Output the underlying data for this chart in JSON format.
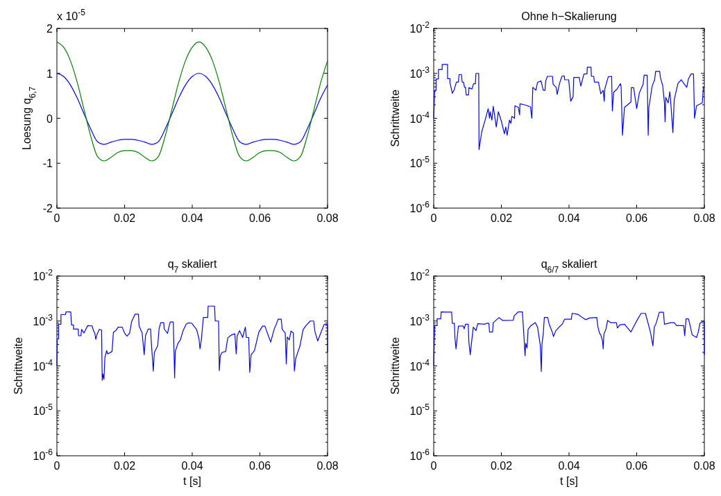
{
  "chart_data": [
    {
      "type": "line",
      "ylabel": "Loesung q$_{6,7}$",
      "annotations": [
        "x 10$^{-5}$"
      ],
      "xlim": [
        0,
        0.08
      ],
      "xticks": [
        0,
        0.02,
        0.04,
        0.06,
        0.08
      ],
      "ylim": [
        -2,
        2
      ],
      "yticks": [
        -2,
        -1,
        0,
        1,
        2
      ],
      "series": [
        {
          "color": "#0000ff",
          "x": [
            0,
            0.002,
            0.004,
            0.006,
            0.008,
            0.01,
            0.012,
            0.014,
            0.016,
            0.018,
            0.02,
            0.022,
            0.024,
            0.026,
            0.028,
            0.03,
            0.032,
            0.034,
            0.036,
            0.038,
            0.04,
            0.042,
            0.044,
            0.046,
            0.048,
            0.05,
            0.052,
            0.054,
            0.056,
            0.058,
            0.06,
            0.062,
            0.064,
            0.066,
            0.068,
            0.07,
            0.072,
            0.074,
            0.076,
            0.078,
            0.08
          ],
          "values": [
            1.0,
            0.93,
            0.74,
            0.45,
            0.1,
            -0.24,
            -0.52,
            -0.58,
            -0.53,
            -0.49,
            -0.47,
            -0.47,
            -0.49,
            -0.53,
            -0.58,
            -0.52,
            -0.24,
            0.1,
            0.45,
            0.74,
            0.93,
            1.0,
            0.93,
            0.74,
            0.45,
            0.1,
            -0.24,
            -0.52,
            -0.58,
            -0.53,
            -0.49,
            -0.47,
            -0.47,
            -0.49,
            -0.53,
            -0.58,
            -0.52,
            -0.24,
            0.1,
            0.45,
            0.74
          ]
        },
        {
          "color": "#008000",
          "x": [
            0,
            0.002,
            0.004,
            0.006,
            0.008,
            0.01,
            0.012,
            0.014,
            0.016,
            0.018,
            0.02,
            0.022,
            0.024,
            0.026,
            0.028,
            0.03,
            0.032,
            0.034,
            0.036,
            0.038,
            0.04,
            0.042,
            0.044,
            0.046,
            0.048,
            0.05,
            0.052,
            0.054,
            0.056,
            0.058,
            0.06,
            0.062,
            0.064,
            0.066,
            0.068,
            0.07,
            0.072,
            0.074,
            0.076,
            0.078,
            0.08
          ],
          "values": [
            1.7,
            1.58,
            1.28,
            0.8,
            0.2,
            -0.4,
            -0.85,
            -0.95,
            -0.87,
            -0.76,
            -0.72,
            -0.72,
            -0.76,
            -0.87,
            -0.95,
            -0.85,
            -0.4,
            0.2,
            0.8,
            1.28,
            1.58,
            1.7,
            1.58,
            1.28,
            0.8,
            0.2,
            -0.4,
            -0.85,
            -0.95,
            -0.87,
            -0.76,
            -0.72,
            -0.72,
            -0.76,
            -0.87,
            -0.95,
            -0.85,
            -0.4,
            0.2,
            0.8,
            1.28
          ]
        }
      ]
    },
    {
      "type": "line",
      "title": "Ohne h−Skalierung",
      "ylabel": "Schrittweite",
      "log": "y",
      "xlim": [
        0,
        0.08
      ],
      "xticks": [
        0,
        0.02,
        0.04,
        0.06,
        0.08
      ],
      "ylim": [
        1e-06,
        0.01
      ],
      "yticks": [
        {
          "value": 1e-06,
          "label": "10$^{-6}$"
        },
        {
          "value": 2e-06,
          "label": null
        },
        {
          "value": 3e-06,
          "label": null
        },
        {
          "value": 4e-06,
          "label": null
        },
        {
          "value": 5e-06,
          "label": null
        },
        {
          "value": 6e-06,
          "label": null
        },
        {
          "value": 7e-06,
          "label": null
        },
        {
          "value": 8e-06,
          "label": null
        },
        {
          "value": 9e-06,
          "label": null
        },
        {
          "value": 1e-05,
          "label": "10$^{-5}$"
        },
        {
          "value": 2e-05,
          "label": null
        },
        {
          "value": 3e-05,
          "label": null
        },
        {
          "value": 4e-05,
          "label": null
        },
        {
          "value": 5e-05,
          "label": null
        },
        {
          "value": 6e-05,
          "label": null
        },
        {
          "value": 7e-05,
          "label": null
        },
        {
          "value": 8e-05,
          "label": null
        },
        {
          "value": 9e-05,
          "label": null
        },
        {
          "value": 0.0001,
          "label": "10$^{-4}$"
        },
        {
          "value": 0.0002,
          "label": null
        },
        {
          "value": 0.0003,
          "label": null
        },
        {
          "value": 0.0004,
          "label": null
        },
        {
          "value": 0.0005,
          "label": null
        },
        {
          "value": 0.0006,
          "label": null
        },
        {
          "value": 0.0007,
          "label": null
        },
        {
          "value": 0.0008,
          "label": null
        },
        {
          "value": 0.0009,
          "label": null
        },
        {
          "value": 0.001,
          "label": "10$^{-3}$"
        },
        {
          "value": 0.002,
          "label": null
        },
        {
          "value": 0.003,
          "label": null
        },
        {
          "value": 0.004,
          "label": null
        },
        {
          "value": 0.005,
          "label": null
        },
        {
          "value": 0.006,
          "label": null
        },
        {
          "value": 0.007,
          "label": null
        },
        {
          "value": 0.008,
          "label": null
        },
        {
          "value": 0.009,
          "label": null
        },
        {
          "value": 0.01,
          "label": "10$^{-2}$"
        }
      ],
      "series": [
        {
          "color": "#0000ff",
          "x": [
            0,
            0.0003,
            0.0007,
            0.0007,
            0.0014,
            0.0014,
            0.0025,
            0.0025,
            0.0041,
            0.0041,
            0.0048,
            0.0048,
            0.0055,
            0.006,
            0.0067,
            0.0073,
            0.0075,
            0.0082,
            0.0084,
            0.0088,
            0.0091,
            0.0094,
            0.0096,
            0.0103,
            0.0104,
            0.0113,
            0.0118,
            0.0123,
            0.0125,
            0.0133,
            0.0134,
            0.0142,
            0.0152,
            0.0161,
            0.0165,
            0.0167,
            0.0172,
            0.0176,
            0.0183,
            0.0185,
            0.0191,
            0.02,
            0.0209,
            0.0213,
            0.0217,
            0.0224,
            0.0228,
            0.0231,
            0.0239,
            0.024,
            0.025,
            0.0254,
            0.0255,
            0.0268,
            0.0286,
            0.029,
            0.0293,
            0.0302,
            0.0307,
            0.0317,
            0.0324,
            0.0329,
            0.0331,
            0.0336,
            0.0351,
            0.0353,
            0.0362,
            0.0365,
            0.0372,
            0.0379,
            0.0386,
            0.0387,
            0.0399,
            0.0405,
            0.0412,
            0.0414,
            0.043,
            0.0435,
            0.0444,
            0.0453,
            0.0454,
            0.0465,
            0.0466,
            0.0473,
            0.0475,
            0.0487,
            0.0494,
            0.0501,
            0.0504,
            0.0506,
            0.0516,
            0.0526,
            0.0528,
            0.0532,
            0.0542,
            0.0552,
            0.0554,
            0.0558,
            0.0564,
            0.0583,
            0.0584,
            0.0591,
            0.06,
            0.0608,
            0.0619,
            0.0622,
            0.0631,
            0.0634,
            0.0636,
            0.0646,
            0.0653,
            0.0656,
            0.0668,
            0.067,
            0.0677,
            0.0682,
            0.0684,
            0.0686,
            0.0693,
            0.0698,
            0.0701,
            0.0707,
            0.0711,
            0.0722,
            0.0732,
            0.0739,
            0.0748,
            0.0753,
            0.0761,
            0.0768,
            0.0771,
            0.0777,
            0.0794,
            0.0797,
            0.08
          ],
          "values": [
            0.0001,
            0.00042,
            0.00042,
            0.00075,
            0.00075,
            0.00122,
            0.00122,
            0.00158,
            0.00158,
            0.00076,
            0.00076,
            0.00062,
            0.00036,
            0.00042,
            0.00064,
            0.00064,
            0.00094,
            0.00094,
            0.00064,
            0.00064,
            0.00049,
            0.00049,
            0.00033,
            0.00033,
            0.00048,
            0.00045,
            0.00059,
            0.00059,
            0.001,
            0.001,
            2e-05,
            5e-05,
            9.1e-05,
            0.000164,
            0.0001,
            0.00014,
            9.1e-05,
            0.000185,
            8.1e-05,
            6.4e-05,
            0.00014,
            8.6e-05,
            4.5e-05,
            6.4e-05,
            4.2e-05,
            9.1e-05,
            7.7e-05,
            0.00011,
            0.0001,
            0.00019,
            0.000175,
            0.00012,
            0.00021,
            0.0002,
            0.00018,
            0.0001,
            0.00049,
            0.00042,
            0.00063,
            0.00068,
            0.00042,
            0.00042,
            0.00068,
            0.00086,
            0.00086,
            0.00057,
            0.00049,
            0.00034,
            0.0006,
            0.00086,
            0.00088,
            0.00072,
            0.00072,
            0.00024,
            0.0003,
            0.00081,
            0.00081,
            0.00052,
            0.00097,
            0.00097,
            0.00137,
            0.00137,
            0.00086,
            0.00086,
            0.00064,
            0.00064,
            0.00035,
            0.00042,
            0.00024,
            0.00046,
            0.00084,
            0.00086,
            0.000146,
            0.00038,
            0.00045,
            0.00059,
            0.0005,
            4.2e-05,
            0.000175,
            0.00023,
            0.00048,
            0.00048,
            0.000164,
            0.00037,
            0.00057,
            0.00091,
            0.00091,
            4.2e-05,
            0.000175,
            0.00053,
            0.00072,
            0.00111,
            0.00111,
            0.00081,
            0.00053,
            0.00022,
            8.3e-05,
            0.00029,
            0.00022,
            0.00039,
            0.00021,
            4.8e-05,
            0.00026,
            0.0006,
            0.00072,
            0.0006,
            0.00049,
            0.00076,
            0.00097,
            0.00097,
            0.0001,
            0.00019,
            0.00022,
            0.00048,
            0.00048
          ]
        }
      ]
    },
    {
      "type": "line",
      "title": "q$_{7}$ skaliert",
      "xlabel": "t [s]",
      "ylabel": "Schrittweite",
      "log": "y",
      "xlim": [
        0,
        0.08
      ],
      "xticks": [
        0,
        0.02,
        0.04,
        0.06,
        0.08
      ],
      "ylim": [
        1e-06,
        0.01
      ],
      "yticks": [
        {
          "value": 1e-06,
          "label": "10$^{-6}$"
        },
        {
          "value": 2e-06,
          "label": null
        },
        {
          "value": 3e-06,
          "label": null
        },
        {
          "value": 4e-06,
          "label": null
        },
        {
          "value": 5e-06,
          "label": null
        },
        {
          "value": 6e-06,
          "label": null
        },
        {
          "value": 7e-06,
          "label": null
        },
        {
          "value": 8e-06,
          "label": null
        },
        {
          "value": 9e-06,
          "label": null
        },
        {
          "value": 1e-05,
          "label": "10$^{-5}$"
        },
        {
          "value": 2e-05,
          "label": null
        },
        {
          "value": 3e-05,
          "label": null
        },
        {
          "value": 4e-05,
          "label": null
        },
        {
          "value": 5e-05,
          "label": null
        },
        {
          "value": 6e-05,
          "label": null
        },
        {
          "value": 7e-05,
          "label": null
        },
        {
          "value": 8e-05,
          "label": null
        },
        {
          "value": 9e-05,
          "label": null
        },
        {
          "value": 0.0001,
          "label": "10$^{-4}$"
        },
        {
          "value": 0.0002,
          "label": null
        },
        {
          "value": 0.0003,
          "label": null
        },
        {
          "value": 0.0004,
          "label": null
        },
        {
          "value": 0.0005,
          "label": null
        },
        {
          "value": 0.0006,
          "label": null
        },
        {
          "value": 0.0007,
          "label": null
        },
        {
          "value": 0.0008,
          "label": null
        },
        {
          "value": 0.0009,
          "label": null
        },
        {
          "value": 0.001,
          "label": "10$^{-3}$"
        },
        {
          "value": 0.002,
          "label": null
        },
        {
          "value": 0.003,
          "label": null
        },
        {
          "value": 0.004,
          "label": null
        },
        {
          "value": 0.005,
          "label": null
        },
        {
          "value": 0.006,
          "label": null
        },
        {
          "value": 0.007,
          "label": null
        },
        {
          "value": 0.008,
          "label": null
        },
        {
          "value": 0.009,
          "label": null
        },
        {
          "value": 0.01,
          "label": "10$^{-2}$"
        }
      ],
      "series": [
        {
          "color": "#0000ff",
          "x": [
            0,
            0.0001,
            0.0005,
            0.0005,
            0.0012,
            0.0012,
            0.0025,
            0.0027,
            0.0041,
            0.0043,
            0.0049,
            0.0049,
            0.0063,
            0.0064,
            0.0071,
            0.0073,
            0.008,
            0.0091,
            0.0104,
            0.0108,
            0.0112,
            0.0115,
            0.0118,
            0.0125,
            0.0132,
            0.0134,
            0.0136,
            0.0139,
            0.0142,
            0.0147,
            0.015,
            0.0163,
            0.0167,
            0.0174,
            0.0181,
            0.0193,
            0.02,
            0.0207,
            0.0215,
            0.0221,
            0.0231,
            0.0241,
            0.0243,
            0.0252,
            0.0258,
            0.0262,
            0.027,
            0.0277,
            0.0279,
            0.0285,
            0.0288,
            0.0298,
            0.0302,
            0.0307,
            0.0316,
            0.0317,
            0.0327,
            0.0331,
            0.0335,
            0.0344,
            0.0346,
            0.0348,
            0.035,
            0.0358,
            0.0365,
            0.0373,
            0.0382,
            0.0389,
            0.0399,
            0.0405,
            0.0413,
            0.042,
            0.0423,
            0.0427,
            0.0433,
            0.0446,
            0.0447,
            0.0466,
            0.0468,
            0.0478,
            0.048,
            0.0483,
            0.0488,
            0.0499,
            0.0505,
            0.0516,
            0.0526,
            0.053,
            0.0533,
            0.054,
            0.0549,
            0.0557,
            0.056,
            0.0567,
            0.057,
            0.0574,
            0.0584,
            0.0597,
            0.0608,
            0.0615,
            0.0622,
            0.0632,
            0.0642,
            0.0649,
            0.0654,
            0.0663,
            0.0666,
            0.0675,
            0.0678,
            0.0681,
            0.0687,
            0.0692,
            0.0699,
            0.0702,
            0.0706,
            0.0718,
            0.0728,
            0.0738,
            0.0749,
            0.0759,
            0.0763,
            0.0771,
            0.078,
            0.079,
            0.08,
            0.08
          ],
          "values": [
            0.0001,
            0.0004,
            0.0004,
            0.00085,
            0.00085,
            0.00139,
            0.00139,
            0.0016,
            0.0016,
            0.00082,
            0.00082,
            0.00066,
            0.00066,
            0.00047,
            0.00047,
            0.00065,
            0.00054,
            0.00079,
            0.00078,
            0.00061,
            0.00054,
            0.00039,
            0.00049,
            0.00065,
            0.00063,
            4.8e-05,
            6.6e-05,
            5e-05,
            0.000156,
            0.00022,
            0.000185,
            0.00021,
            0.00056,
            0.00061,
            0.00073,
            0.00073,
            0.00054,
            0.00046,
            0.00054,
            0.00098,
            0.00142,
            0.00142,
            0.00077,
            0.00054,
            0.000177,
            0.00048,
            0.00066,
            0.00066,
            0.00034,
            7.7e-05,
            0.0002,
            0.00028,
            0.00067,
            0.00092,
            0.00092,
            0.00067,
            0.00053,
            0.00073,
            0.00095,
            0.00095,
            0.00022,
            5.4e-05,
            0.00021,
            0.00032,
            0.00038,
            0.00061,
            0.00085,
            0.00091,
            0.00089,
            0.00077,
            0.00065,
            0.0004,
            0.00024,
            0.00038,
            0.0012,
            0.0012,
            0.00215,
            0.00215,
            0.001,
            0.001,
            7.9e-05,
            0.000166,
            0.0002,
            0.00021,
            0.00042,
            0.00049,
            0.00052,
            0.000185,
            0.00047,
            0.00061,
            0.00043,
            0.00073,
            0.00043,
            0.00043,
            7.2e-05,
            0.000177,
            0.00022,
            0.00057,
            0.00077,
            0.00077,
            0.00054,
            0.00034,
            0.00065,
            0.00087,
            0.0011,
            0.0011,
            0.00065,
            0.00054,
            0.00011,
            0.00044,
            0.00038,
            0.0006,
            0.00054,
            7.7e-05,
            0.000148,
            0.00027,
            0.00065,
            0.00082,
            0.001,
            0.001,
            0.00057,
            0.00036,
            0.00054,
            0.00084,
            0.00084,
            0.0002
          ]
        }
      ]
    },
    {
      "type": "line",
      "title": "q$_{6/7}$ skaliert",
      "xlabel": "t [s]",
      "ylabel": "Schrittweite",
      "log": "y",
      "xlim": [
        0,
        0.08
      ],
      "xticks": [
        0,
        0.02,
        0.04,
        0.06,
        0.08
      ],
      "ylim": [
        1e-06,
        0.01
      ],
      "yticks": [
        {
          "value": 1e-06,
          "label": "10$^{-6}$"
        },
        {
          "value": 2e-06,
          "label": null
        },
        {
          "value": 3e-06,
          "label": null
        },
        {
          "value": 4e-06,
          "label": null
        },
        {
          "value": 5e-06,
          "label": null
        },
        {
          "value": 6e-06,
          "label": null
        },
        {
          "value": 7e-06,
          "label": null
        },
        {
          "value": 8e-06,
          "label": null
        },
        {
          "value": 9e-06,
          "label": null
        },
        {
          "value": 1e-05,
          "label": "10$^{-5}$"
        },
        {
          "value": 2e-05,
          "label": null
        },
        {
          "value": 3e-05,
          "label": null
        },
        {
          "value": 4e-05,
          "label": null
        },
        {
          "value": 5e-05,
          "label": null
        },
        {
          "value": 6e-05,
          "label": null
        },
        {
          "value": 7e-05,
          "label": null
        },
        {
          "value": 8e-05,
          "label": null
        },
        {
          "value": 9e-05,
          "label": null
        },
        {
          "value": 0.0001,
          "label": "10$^{-4}$"
        },
        {
          "value": 0.0002,
          "label": null
        },
        {
          "value": 0.0003,
          "label": null
        },
        {
          "value": 0.0004,
          "label": null
        },
        {
          "value": 0.0005,
          "label": null
        },
        {
          "value": 0.0006,
          "label": null
        },
        {
          "value": 0.0007,
          "label": null
        },
        {
          "value": 0.0008,
          "label": null
        },
        {
          "value": 0.0009,
          "label": null
        },
        {
          "value": 0.001,
          "label": "10$^{-3}$"
        },
        {
          "value": 0.002,
          "label": null
        },
        {
          "value": 0.003,
          "label": null
        },
        {
          "value": 0.004,
          "label": null
        },
        {
          "value": 0.005,
          "label": null
        },
        {
          "value": 0.006,
          "label": null
        },
        {
          "value": 0.007,
          "label": null
        },
        {
          "value": 0.008,
          "label": null
        },
        {
          "value": 0.009,
          "label": null
        },
        {
          "value": 0.01,
          "label": "10$^{-2}$"
        }
      ],
      "series": [
        {
          "color": "#0000ff",
          "x": [
            0,
            0.0003,
            0.001,
            0.001,
            0.0021,
            0.0022,
            0.0037,
            0.0053,
            0.0055,
            0.0061,
            0.0063,
            0.0066,
            0.0069,
            0.0073,
            0.0087,
            0.009,
            0.0094,
            0.0102,
            0.0104,
            0.0108,
            0.0112,
            0.0117,
            0.0125,
            0.013,
            0.0152,
            0.0156,
            0.0163,
            0.0165,
            0.0174,
            0.0176,
            0.0193,
            0.0204,
            0.0235,
            0.0238,
            0.025,
            0.0262,
            0.0266,
            0.027,
            0.0272,
            0.0276,
            0.0279,
            0.0286,
            0.03,
            0.0307,
            0.0315,
            0.0318,
            0.032,
            0.0324,
            0.0327,
            0.0337,
            0.0341,
            0.0351,
            0.0354,
            0.0361,
            0.0372,
            0.038,
            0.0387,
            0.0407,
            0.0409,
            0.0421,
            0.0427,
            0.0439,
            0.0449,
            0.0461,
            0.0482,
            0.0485,
            0.049,
            0.0494,
            0.0499,
            0.0501,
            0.0503,
            0.0509,
            0.0514,
            0.0523,
            0.054,
            0.0543,
            0.055,
            0.0564,
            0.0583,
            0.0595,
            0.0602,
            0.0613,
            0.0626,
            0.0641,
            0.0648,
            0.0652,
            0.0657,
            0.0667,
            0.0679,
            0.0682,
            0.0701,
            0.0711,
            0.0718,
            0.0739,
            0.0742,
            0.0746,
            0.0753,
            0.0756,
            0.0764,
            0.0777,
            0.0782,
            0.0787,
            0.0796,
            0.08,
            0.08
          ],
          "values": [
            0.0001,
            0.00079,
            0.00079,
            0.00112,
            0.00112,
            0.0016,
            0.00158,
            0.00158,
            0.00089,
            0.00089,
            0.0004,
            0.00024,
            0.0004,
            0.00077,
            0.00078,
            0.00067,
            0.00085,
            0.00085,
            0.00034,
            0.000177,
            0.00034,
            0.00073,
            0.00061,
            0.00087,
            0.00085,
            0.00089,
            0.00089,
            0.00057,
            0.00057,
            0.00092,
            0.00119,
            0.00103,
            0.00104,
            0.00131,
            0.0016,
            0.0016,
            0.00057,
            0.00017,
            0.00032,
            0.00025,
            0.00065,
            0.00077,
            0.00092,
            0.00073,
            0.00029,
            7.5e-05,
            0.0003,
            0.00054,
            0.0012,
            0.0012,
            0.00087,
            0.00055,
            0.00045,
            0.00061,
            0.00075,
            0.00085,
            0.0011,
            0.0011,
            0.00148,
            0.00143,
            0.0014,
            0.0012,
            0.00107,
            0.00117,
            0.0012,
            0.00077,
            0.00054,
            0.00049,
            0.00036,
            0.00024,
            0.00051,
            0.00065,
            0.00103,
            0.00092,
            0.00092,
            0.0007,
            0.00082,
            0.00085,
            0.00057,
            0.00085,
            0.00107,
            0.00148,
            0.00148,
            0.00055,
            0.00028,
            0.00073,
            0.00087,
            0.00157,
            0.00157,
            0.00085,
            0.00092,
            0.00092,
            0.00079,
            0.00079,
            0.00047,
            0.00112,
            0.00112,
            0.00092,
            0.00049,
            0.00043,
            0.00057,
            0.00089,
            0.00098,
            0.00098,
            0.000177
          ]
        }
      ]
    }
  ]
}
